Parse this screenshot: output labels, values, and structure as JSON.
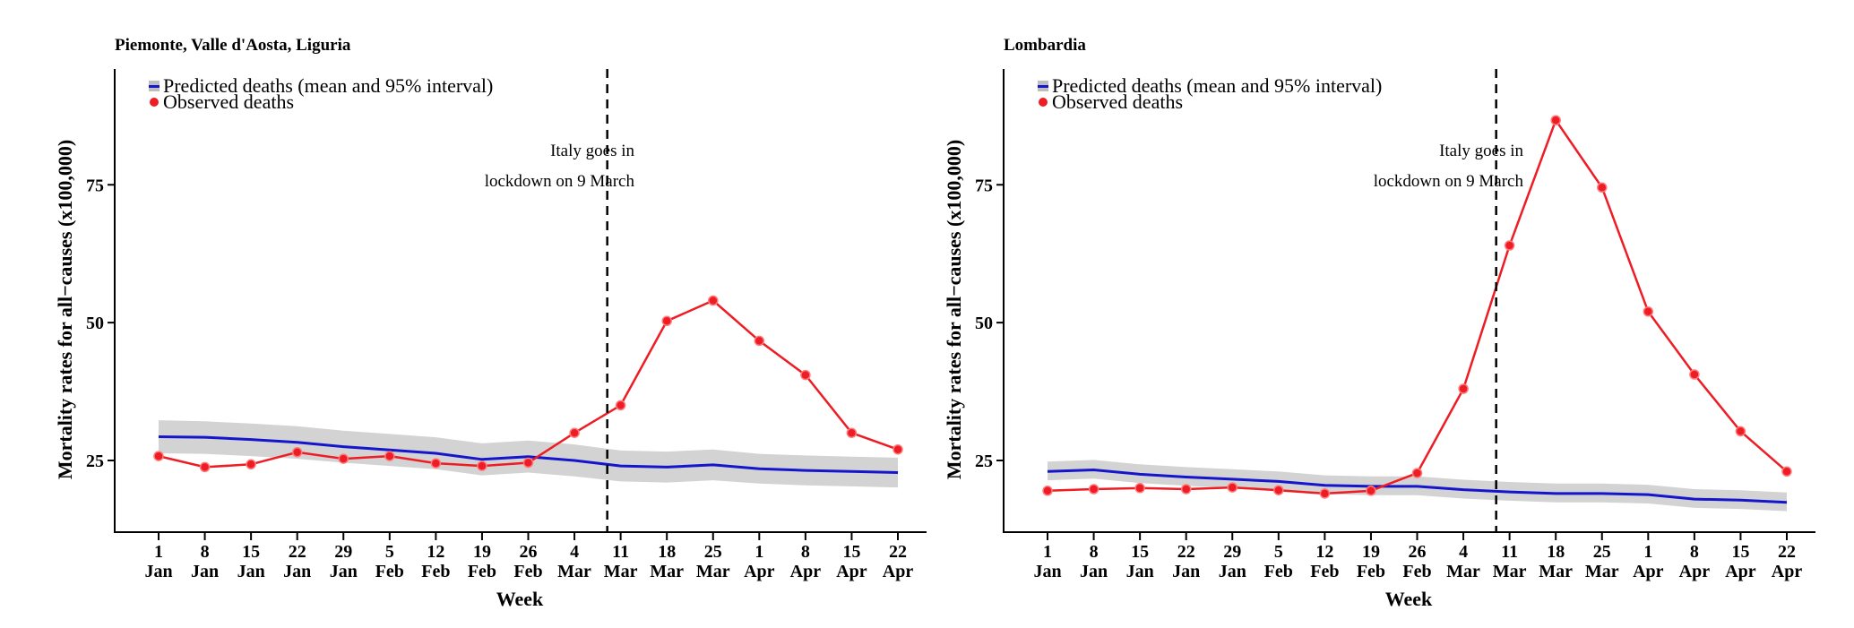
{
  "chart_data": [
    {
      "type": "line",
      "title": "Piemonte, Valle d'Aosta, Liguria",
      "xlabel": "Week",
      "ylabel": "Mortality rates for all−causes (x100,000)",
      "categories": [
        [
          "1",
          "Jan"
        ],
        [
          "8",
          "Jan"
        ],
        [
          "15",
          "Jan"
        ],
        [
          "22",
          "Jan"
        ],
        [
          "29",
          "Jan"
        ],
        [
          "5",
          "Feb"
        ],
        [
          "12",
          "Feb"
        ],
        [
          "19",
          "Feb"
        ],
        [
          "26",
          "Feb"
        ],
        [
          "4",
          "Mar"
        ],
        [
          "11",
          "Mar"
        ],
        [
          "18",
          "Mar"
        ],
        [
          "25",
          "Mar"
        ],
        [
          "1",
          "Apr"
        ],
        [
          "8",
          "Apr"
        ],
        [
          "15",
          "Apr"
        ],
        [
          "22",
          "Apr"
        ]
      ],
      "yticks": [
        25,
        50,
        75
      ],
      "ylim": [
        12,
        96
      ],
      "legend": {
        "position": "top-left",
        "entries": [
          "Predicted deaths (mean and 95% interval)",
          "Observed deaths"
        ]
      },
      "annotation": {
        "lines": [
          "Italy goes in",
          "lockdown on 9 March"
        ],
        "vline_between": [
          "4 Mar",
          "11 Mar"
        ],
        "vline_fraction": 0.71
      },
      "series": [
        {
          "name": "Predicted deaths (mean and 95% interval)",
          "color": "#1515cc",
          "values": [
            29.3,
            29.2,
            28.8,
            28.3,
            27.5,
            26.9,
            26.3,
            25.2,
            25.7,
            25.0,
            24.0,
            23.8,
            24.2,
            23.5,
            23.2,
            23.0,
            22.8
          ],
          "lower": [
            26.3,
            26.2,
            25.8,
            25.3,
            24.6,
            24.0,
            23.4,
            22.3,
            22.8,
            22.1,
            21.2,
            21.0,
            21.4,
            20.8,
            20.5,
            20.3,
            20.1
          ],
          "upper": [
            32.3,
            32.1,
            31.7,
            31.2,
            30.4,
            29.8,
            29.2,
            28.1,
            28.6,
            27.9,
            26.8,
            26.6,
            27.0,
            26.2,
            25.9,
            25.7,
            25.5
          ]
        },
        {
          "name": "Observed deaths",
          "color": "#ee1c24",
          "values": [
            25.8,
            23.8,
            24.3,
            26.5,
            25.3,
            25.8,
            24.5,
            24.0,
            24.6,
            30.0,
            35.0,
            50.3,
            54.0,
            46.7,
            40.5,
            30.0,
            27.0
          ]
        }
      ]
    },
    {
      "type": "line",
      "title": "Lombardia",
      "xlabel": "Week",
      "ylabel": "Mortality rates for all−causes (x100,000)",
      "categories": [
        [
          "1",
          "Jan"
        ],
        [
          "8",
          "Jan"
        ],
        [
          "15",
          "Jan"
        ],
        [
          "22",
          "Jan"
        ],
        [
          "29",
          "Jan"
        ],
        [
          "5",
          "Feb"
        ],
        [
          "12",
          "Feb"
        ],
        [
          "19",
          "Feb"
        ],
        [
          "26",
          "Feb"
        ],
        [
          "4",
          "Mar"
        ],
        [
          "11",
          "Mar"
        ],
        [
          "18",
          "Mar"
        ],
        [
          "25",
          "Mar"
        ],
        [
          "1",
          "Apr"
        ],
        [
          "8",
          "Apr"
        ],
        [
          "15",
          "Apr"
        ],
        [
          "22",
          "Apr"
        ]
      ],
      "yticks": [
        25,
        50,
        75
      ],
      "ylim": [
        12,
        96
      ],
      "legend": {
        "position": "top-left",
        "entries": [
          "Predicted deaths (mean and 95% interval)",
          "Observed deaths"
        ]
      },
      "annotation": {
        "lines": [
          "Italy goes in",
          "lockdown on 9 March"
        ],
        "vline_between": [
          "4 Mar",
          "11 Mar"
        ],
        "vline_fraction": 0.71
      },
      "series": [
        {
          "name": "Predicted deaths (mean and 95% interval)",
          "color": "#1515cc",
          "values": [
            23.0,
            23.3,
            22.5,
            22.0,
            21.6,
            21.2,
            20.5,
            20.3,
            20.3,
            19.7,
            19.3,
            19.0,
            19.0,
            18.8,
            18.0,
            17.8,
            17.4
          ],
          "lower": [
            21.4,
            21.7,
            20.9,
            20.4,
            20.0,
            19.6,
            18.9,
            18.7,
            18.7,
            18.1,
            17.7,
            17.4,
            17.4,
            17.2,
            16.4,
            16.2,
            15.8
          ],
          "upper": [
            24.8,
            25.1,
            24.3,
            23.8,
            23.4,
            23.0,
            22.3,
            22.1,
            22.1,
            21.5,
            21.1,
            20.8,
            20.8,
            20.6,
            19.8,
            19.6,
            19.2
          ]
        },
        {
          "name": "Observed deaths",
          "color": "#ee1c24",
          "values": [
            19.5,
            19.8,
            20.0,
            19.8,
            20.1,
            19.6,
            19.0,
            19.5,
            22.7,
            38.0,
            64.0,
            86.7,
            74.5,
            52.0,
            40.6,
            30.3,
            23.0
          ]
        }
      ]
    }
  ]
}
